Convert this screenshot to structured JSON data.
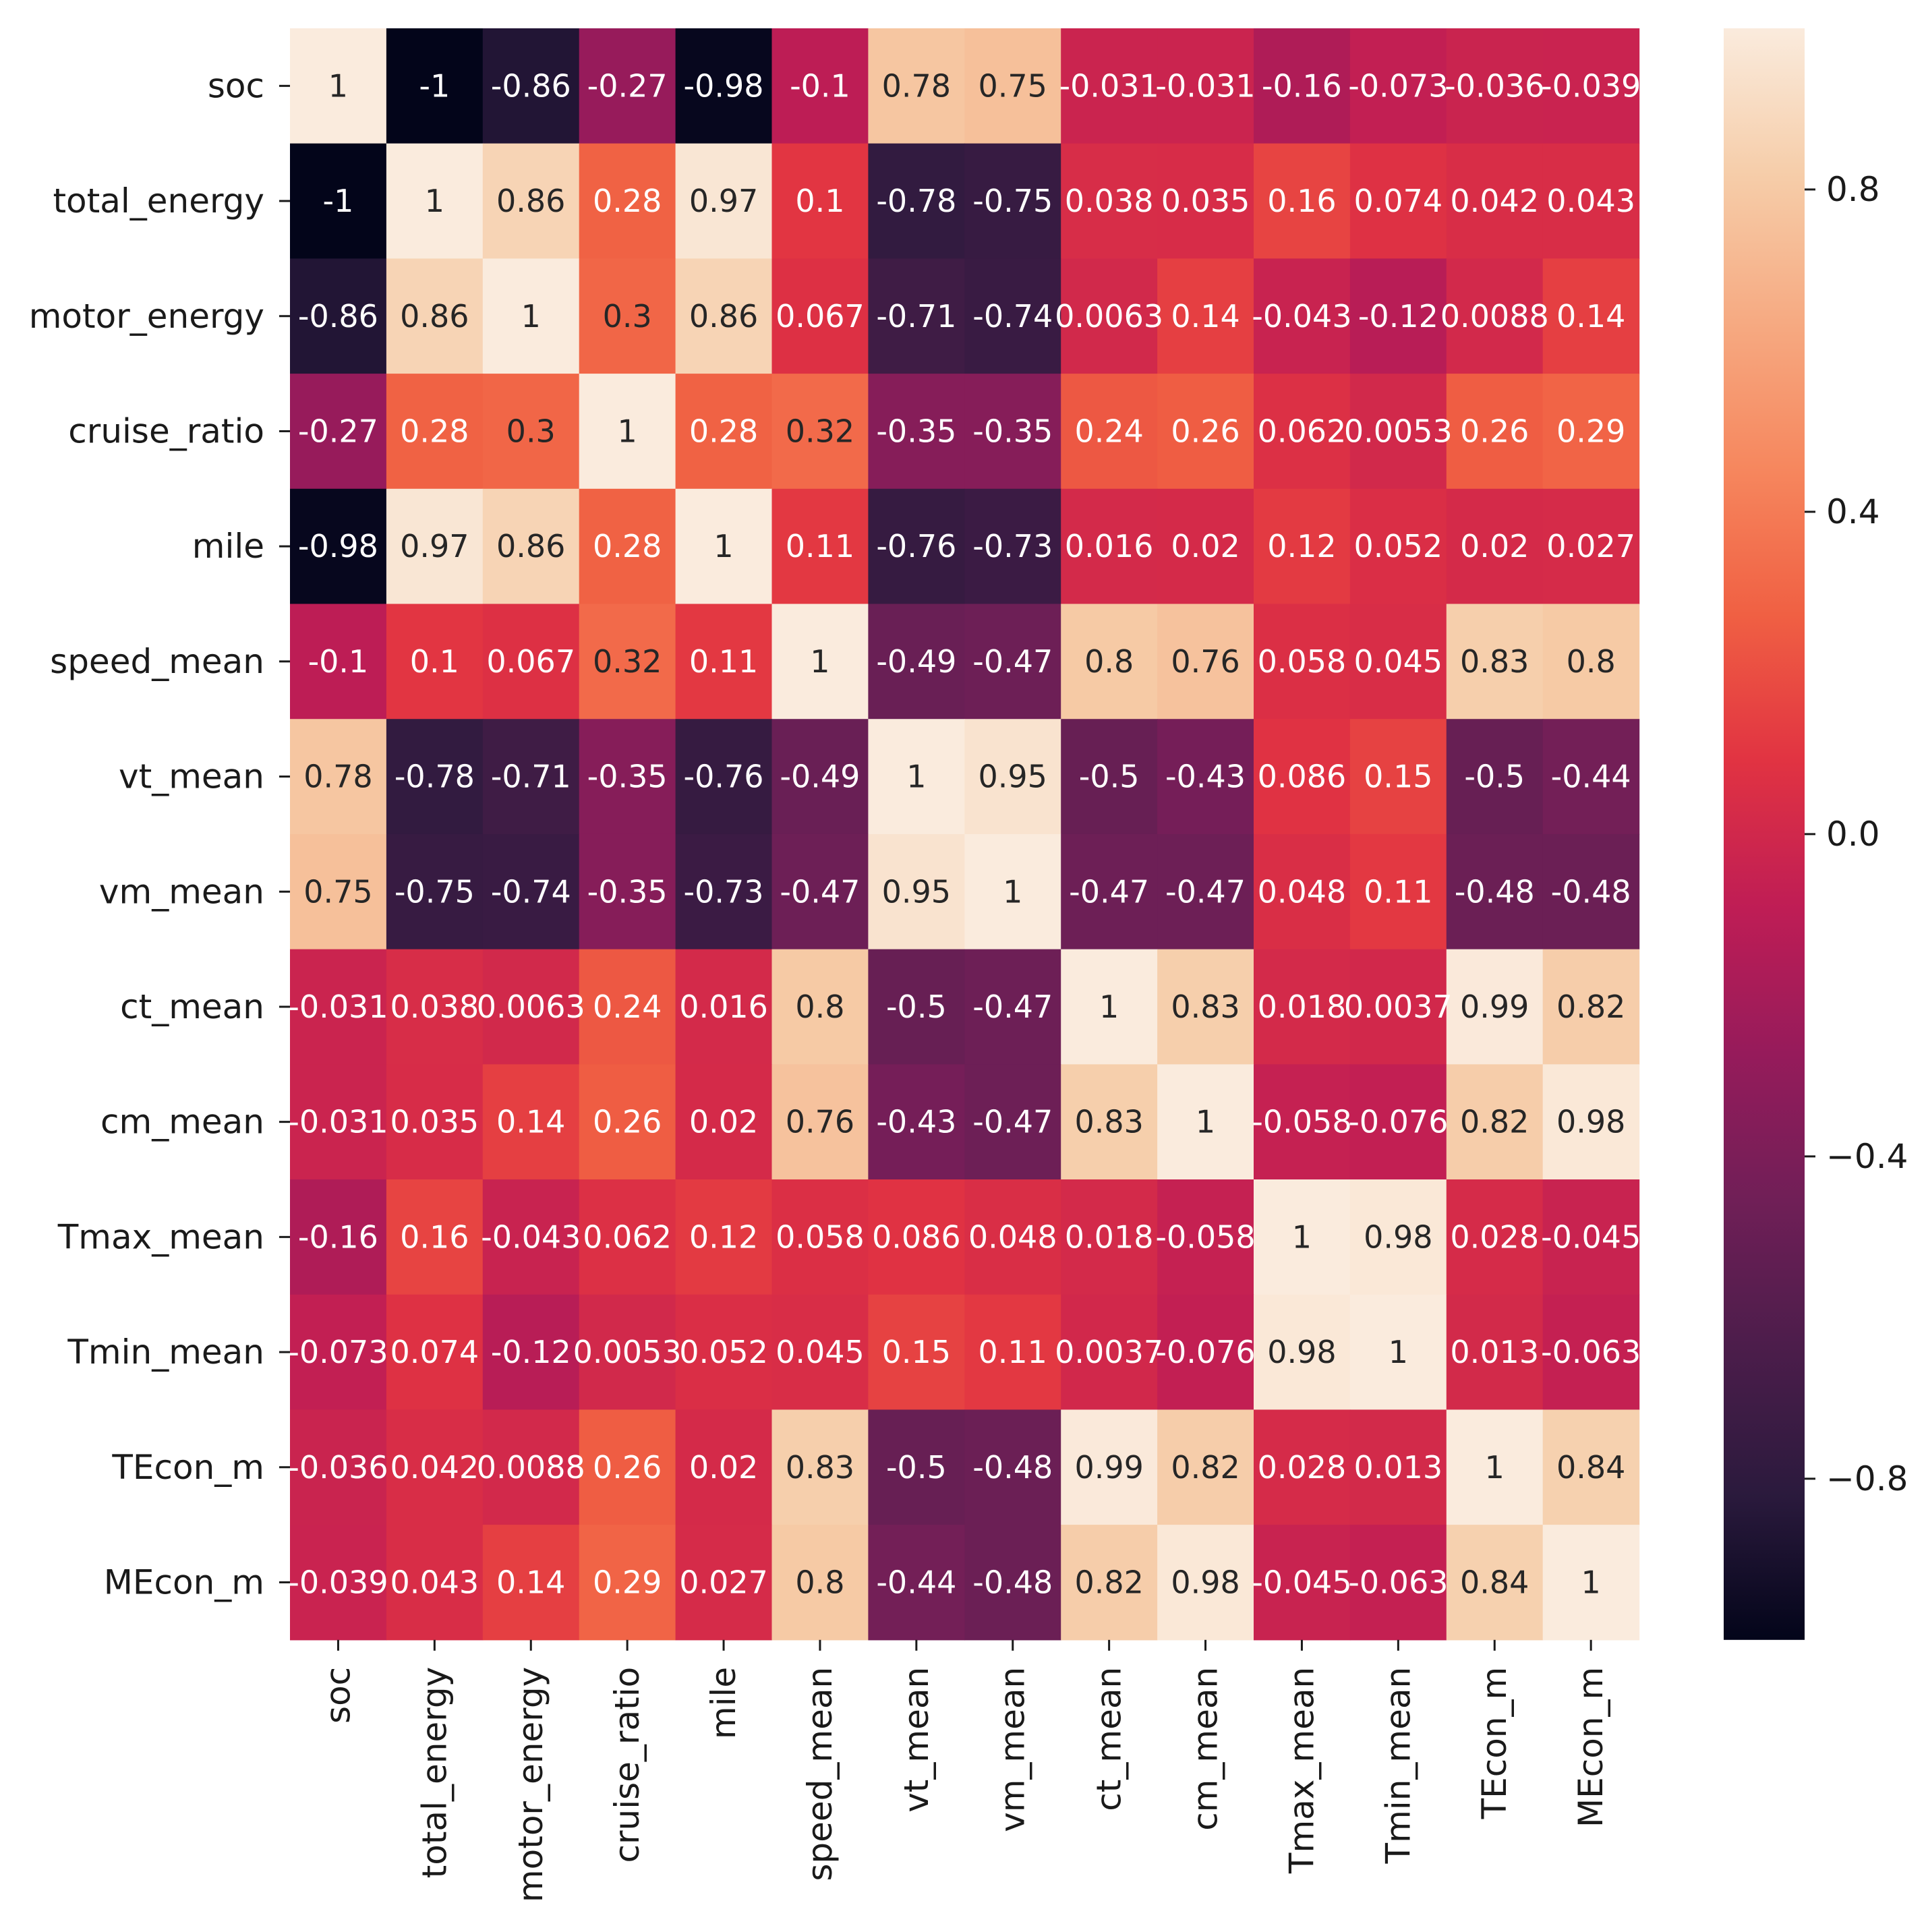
{
  "chart_data": {
    "type": "heatmap",
    "title": "",
    "xlabel": "",
    "ylabel": "",
    "row_labels": [
      "soc",
      "total_energy",
      "motor_energy",
      "cruise_ratio",
      "mile",
      "speed_mean",
      "vt_mean",
      "vm_mean",
      "ct_mean",
      "cm_mean",
      "Tmax_mean",
      "Tmin_mean",
      "TEcon_m",
      "MEcon_m"
    ],
    "col_labels": [
      "soc",
      "total_energy",
      "motor_energy",
      "cruise_ratio",
      "mile",
      "speed_mean",
      "vt_mean",
      "vm_mean",
      "ct_mean",
      "cm_mean",
      "Tmax_mean",
      "Tmin_mean",
      "TEcon_m",
      "MEcon_m"
    ],
    "values": [
      [
        1,
        -1,
        -0.86,
        -0.27,
        -0.98,
        -0.1,
        0.78,
        0.75,
        -0.031,
        -0.031,
        -0.16,
        -0.073,
        -0.036,
        -0.039
      ],
      [
        -1,
        1,
        0.86,
        0.28,
        0.97,
        0.1,
        -0.78,
        -0.75,
        0.038,
        0.035,
        0.16,
        0.074,
        0.042,
        0.043
      ],
      [
        -0.86,
        0.86,
        1,
        0.3,
        0.86,
        0.067,
        -0.71,
        -0.74,
        0.0063,
        0.14,
        -0.043,
        -0.12,
        0.0088,
        0.14
      ],
      [
        -0.27,
        0.28,
        0.3,
        1,
        0.28,
        0.32,
        -0.35,
        -0.35,
        0.24,
        0.26,
        0.062,
        0.0053,
        0.26,
        0.29
      ],
      [
        -0.98,
        0.97,
        0.86,
        0.28,
        1,
        0.11,
        -0.76,
        -0.73,
        0.016,
        0.02,
        0.12,
        0.052,
        0.02,
        0.027
      ],
      [
        -0.1,
        0.1,
        0.067,
        0.32,
        0.11,
        1,
        -0.49,
        -0.47,
        0.8,
        0.76,
        0.058,
        0.045,
        0.83,
        0.8
      ],
      [
        0.78,
        -0.78,
        -0.71,
        -0.35,
        -0.76,
        -0.49,
        1,
        0.95,
        -0.5,
        -0.43,
        0.086,
        0.15,
        -0.5,
        -0.44
      ],
      [
        0.75,
        -0.75,
        -0.74,
        -0.35,
        -0.73,
        -0.47,
        0.95,
        1,
        -0.47,
        -0.47,
        0.048,
        0.11,
        -0.48,
        -0.48
      ],
      [
        -0.031,
        0.038,
        0.0063,
        0.24,
        0.016,
        0.8,
        -0.5,
        -0.47,
        1,
        0.83,
        0.018,
        0.0037,
        0.99,
        0.82
      ],
      [
        -0.031,
        0.035,
        0.14,
        0.26,
        0.02,
        0.76,
        -0.43,
        -0.47,
        0.83,
        1,
        -0.058,
        -0.076,
        0.82,
        0.98
      ],
      [
        -0.16,
        0.16,
        -0.043,
        0.062,
        0.12,
        0.058,
        0.086,
        0.048,
        0.018,
        -0.058,
        1,
        0.98,
        0.028,
        -0.045
      ],
      [
        -0.073,
        0.074,
        -0.12,
        0.0053,
        0.052,
        0.045,
        0.15,
        0.11,
        0.0037,
        -0.076,
        0.98,
        1,
        0.013,
        -0.063
      ],
      [
        -0.036,
        0.042,
        0.0088,
        0.26,
        0.02,
        0.83,
        -0.5,
        -0.48,
        0.99,
        0.82,
        0.028,
        0.013,
        1,
        0.84
      ],
      [
        -0.039,
        0.043,
        0.14,
        0.29,
        0.027,
        0.8,
        -0.44,
        -0.48,
        0.82,
        0.98,
        -0.045,
        -0.063,
        0.84,
        1
      ]
    ],
    "colorbar": {
      "range": [
        -1,
        1
      ],
      "ticks": [
        0.8,
        0.4,
        0.0,
        -0.4,
        -0.8
      ],
      "tick_labels": [
        "0.8",
        "0.4",
        "0.0",
        "−0.4",
        "−0.8"
      ],
      "colormap": "rocket",
      "colormap_stops": [
        "#03051a",
        "#2b1a3d",
        "#4c1d4b",
        "#701f57",
        "#961b5b",
        "#bf1d55",
        "#e13342",
        "#f06043",
        "#f6875e",
        "#f6aa82",
        "#f6cda9",
        "#faebdd"
      ]
    },
    "legend": "colorbar-right"
  }
}
